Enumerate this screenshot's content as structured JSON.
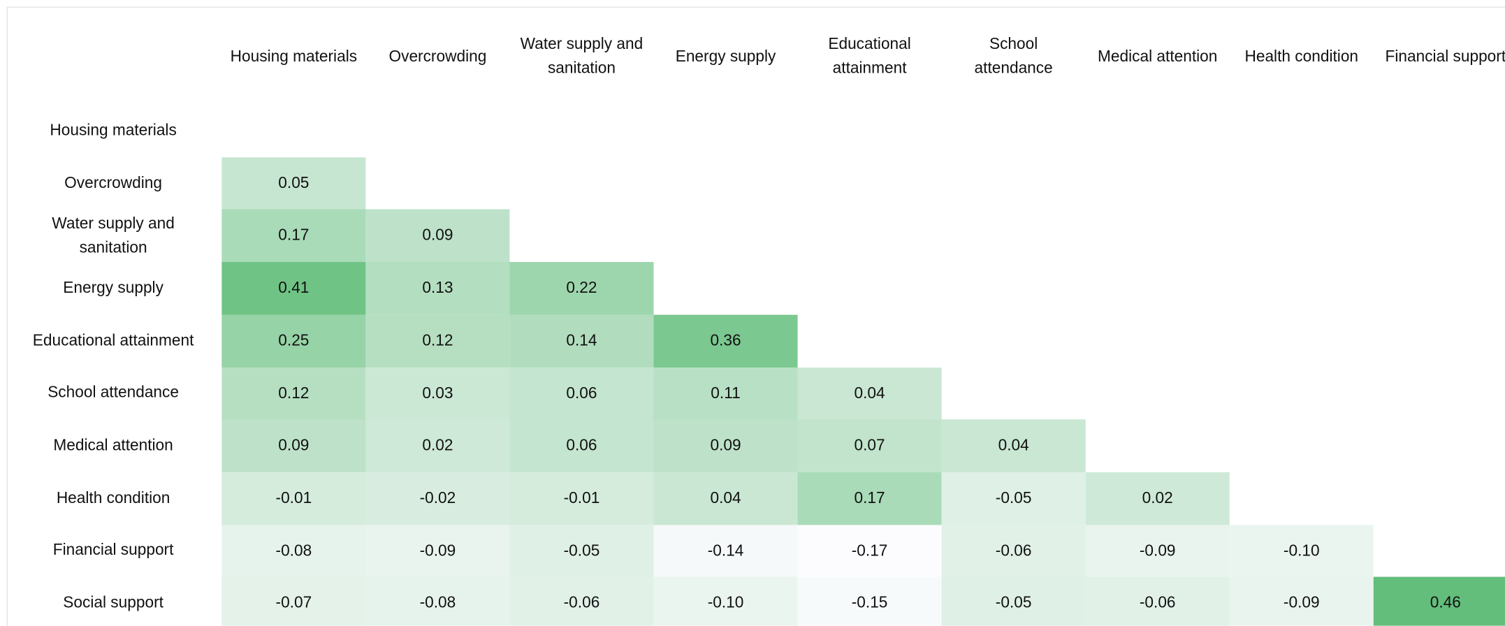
{
  "table": {
    "columns": [
      [
        "Housing materials"
      ],
      [
        "Overcrowding"
      ],
      [
        "Water supply and",
        "sanitation"
      ],
      [
        "Energy supply"
      ],
      [
        "Educational",
        "attainment"
      ],
      [
        "School",
        "attendance"
      ],
      [
        "Medical attention"
      ],
      [
        "Health condition"
      ],
      [
        "Financial support"
      ]
    ],
    "rows": [
      {
        "label": [
          "Housing materials"
        ],
        "cells": []
      },
      {
        "label": [
          "Overcrowding"
        ],
        "cells": [
          "0.05"
        ]
      },
      {
        "label": [
          "Water supply and",
          "sanitation"
        ],
        "cells": [
          "0.17",
          "0.09"
        ]
      },
      {
        "label": [
          "Energy supply"
        ],
        "cells": [
          "0.41",
          "0.13",
          "0.22"
        ]
      },
      {
        "label": [
          "Educational attainment"
        ],
        "cells": [
          "0.25",
          "0.12",
          "0.14",
          "0.36"
        ]
      },
      {
        "label": [
          "School attendance"
        ],
        "cells": [
          "0.12",
          "0.03",
          "0.06",
          "0.11",
          "0.04"
        ]
      },
      {
        "label": [
          "Medical attention"
        ],
        "cells": [
          "0.09",
          "0.02",
          "0.06",
          "0.09",
          "0.07",
          "0.04"
        ]
      },
      {
        "label": [
          "Health condition"
        ],
        "cells": [
          "-0.01",
          "-0.02",
          "-0.01",
          "0.04",
          "0.17",
          "-0.05",
          "0.02"
        ]
      },
      {
        "label": [
          "Financial support"
        ],
        "cells": [
          "-0.08",
          "-0.09",
          "-0.05",
          "-0.14",
          "-0.17",
          "-0.06",
          "-0.09",
          "-0.10"
        ]
      },
      {
        "label": [
          "Social support"
        ],
        "cells": [
          "-0.07",
          "-0.08",
          "-0.06",
          "-0.10",
          "-0.15",
          "-0.05",
          "-0.06",
          "-0.09",
          "0.46"
        ]
      }
    ],
    "color_scale": {
      "min_color": "#fcfcff",
      "max_color": "#63be7b"
    }
  }
}
